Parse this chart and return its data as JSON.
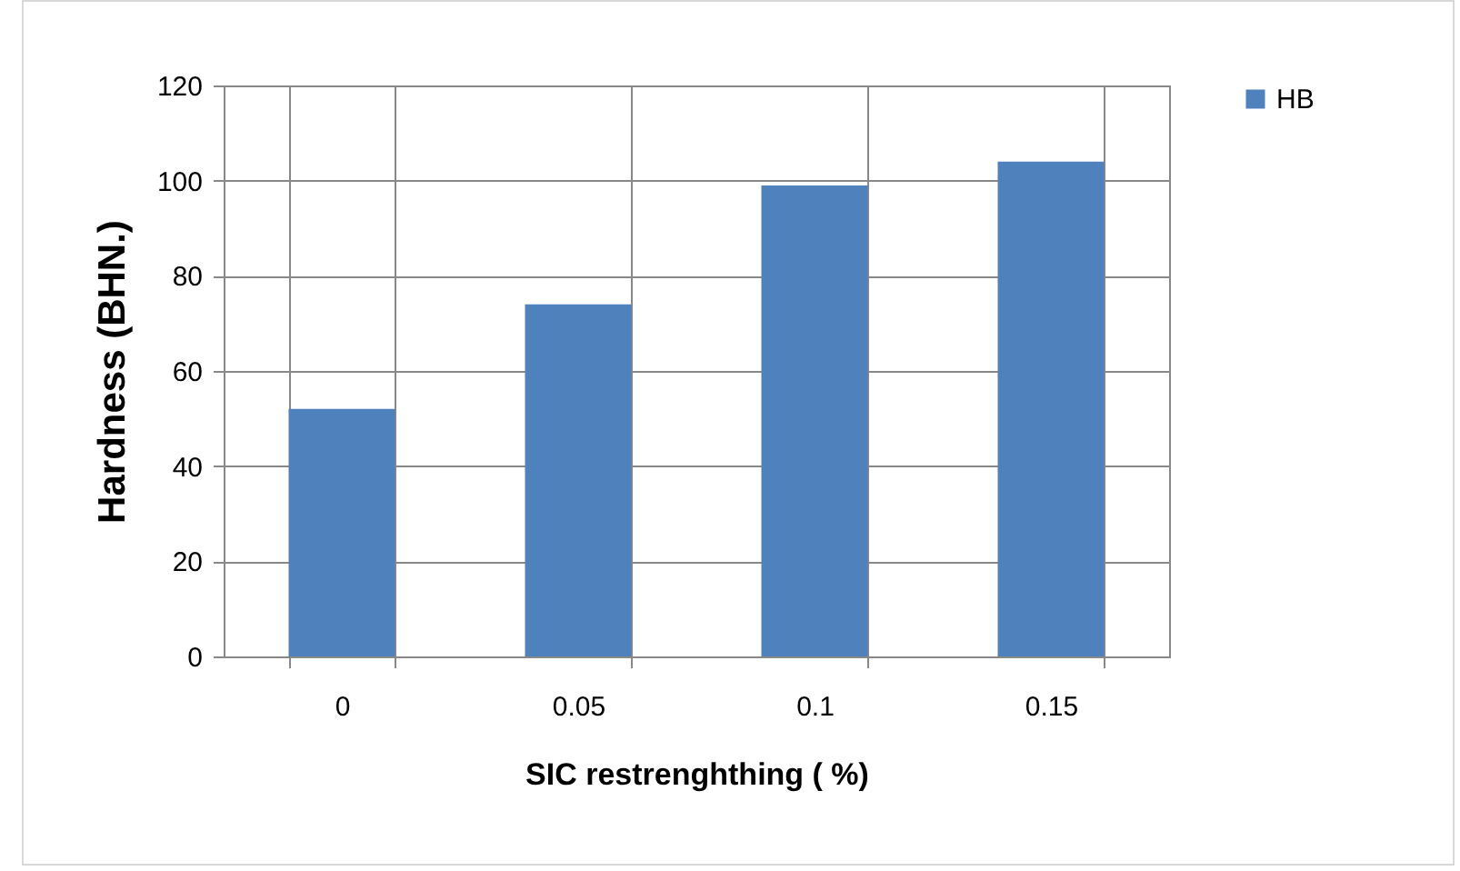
{
  "chart_data": {
    "type": "bar",
    "xlabel": "SIC restrenghthing ( %)",
    "ylabel": "Hardness (BHN.)",
    "categories": [
      "0",
      "0.05",
      "0.1",
      "0.15"
    ],
    "series": [
      {
        "name": "HB",
        "color": "#4f81bd",
        "values": [
          52,
          74,
          99,
          104
        ]
      }
    ],
    "ylim": [
      0,
      120
    ],
    "yticks": [
      0,
      20,
      40,
      60,
      80,
      100,
      120
    ],
    "grid": true,
    "legend": "right"
  }
}
